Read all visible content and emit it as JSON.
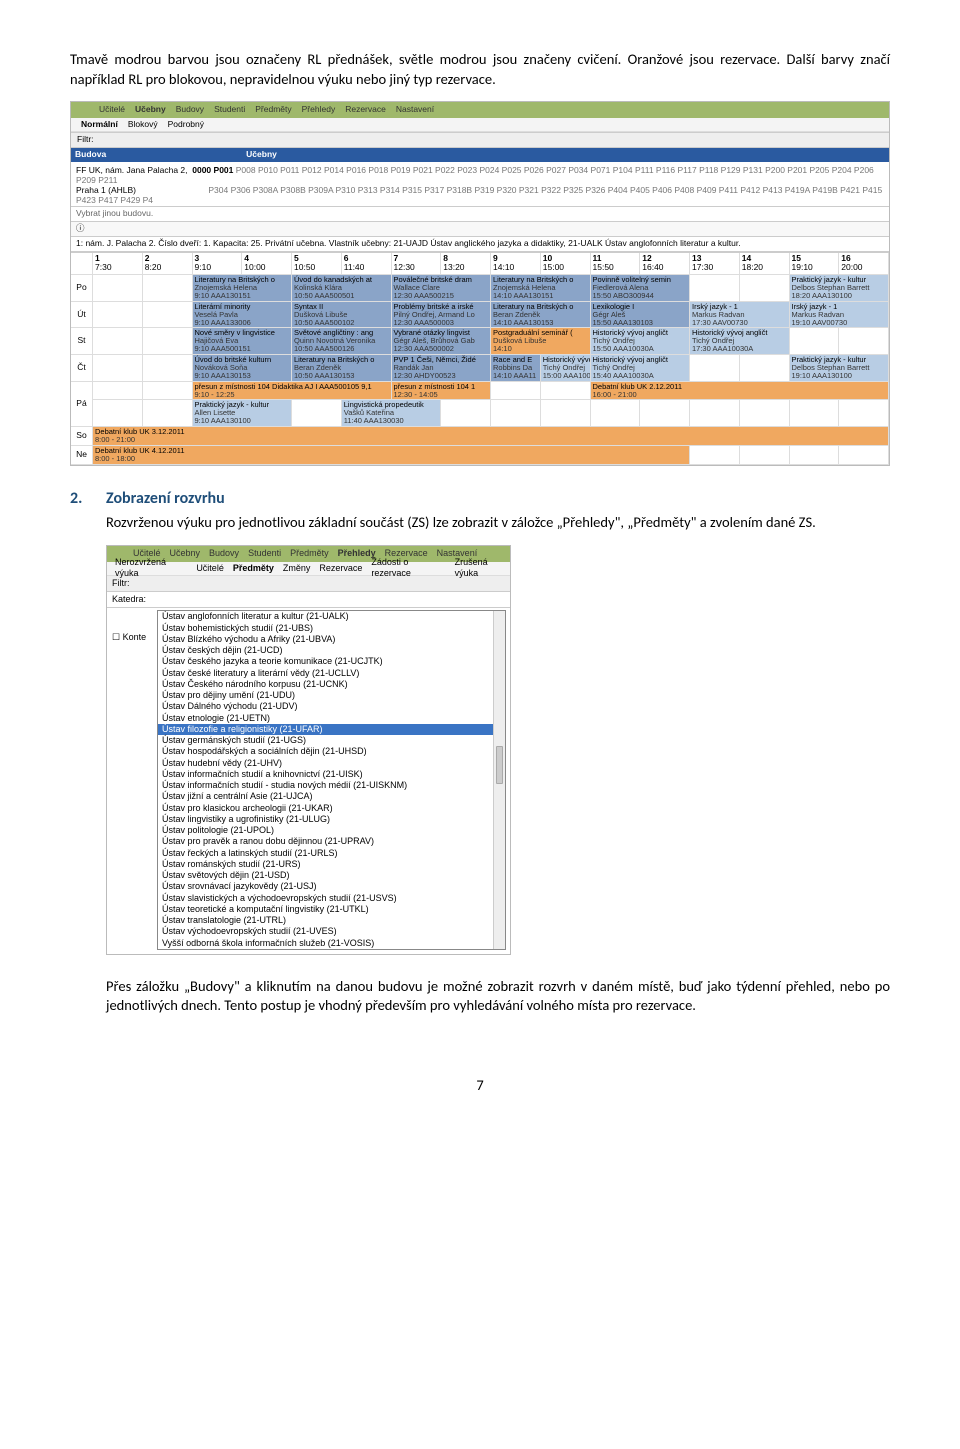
{
  "intro": {
    "p1": "Tmavě modrou barvou jsou označeny RL přednášek, světle modrou jsou značeny cvičení. Oranžové jsou rezervace. Další barvy značí například RL pro blokovou, nepravidelnou výuku nebo jiný typ rezervace."
  },
  "section2": {
    "num": "2.",
    "head": "Zobrazení rozvrhu",
    "body": "Rozvrženou výuku pro jednotlivou základní součást (ZS) lze zobrazit v záložce „Přehledy\", „Předměty\" a zvolením dané ZS."
  },
  "para3": "Přes záložku „Budovy\" a kliknutím na danou budovu je možné zobrazit rozvrh v daném místě, buď jako týdenní přehled, nebo po jednotlivých dnech. Tento postup je vhodný především pro vyhledávání volného místa pro rezervace.",
  "pg": "7",
  "shot1": {
    "tabs": [
      "Učitelé",
      "Učebny",
      "Budovy",
      "Studenti",
      "Předměty",
      "Přehledy",
      "Rezervace",
      "Nastavení"
    ],
    "subtabs": [
      "Normální",
      "Blokový",
      "Podrobný"
    ],
    "filter": "Filtr:",
    "bluebar_left": "Budova",
    "bluebar_right": "Učebny",
    "addr_title": "FF UK, nám. Jana Palacha 2,",
    "addr_sel": "0000 P001",
    "addr_rooms": "P008 P010 P011 P012 P014 P016 P018 P019 P021 P022 P023 P024 P025 P026 P027 P034 P071 P104 P111 P116 P117 P118 P129 P131 P200 P201 P205 P204 P206 P209 P211",
    "addr_line2": "Praha 1 (AHLB)",
    "addr_rooms2": "P304 P306 P308A P308B P309A P310 P313 P314 P315 P317 P318B P319 P320 P321 P322 P325 P326 P404 P405 P406 P408 P409 P411 P412 P413 P419A P419B P421 P415 P423 P417 P429 P4",
    "note": "Vybrat jinou budovu.",
    "info": "1: nám. J. Palacha 2. Číslo dveří: 1. Kapacita: 25. Privátní učebna. Vlastník učebny: 21-UAJD Ústav anglického jazyka a didaktiky, 21-UALK Ústav anglofonních literatur a kultur.",
    "times": [
      {
        "n": "1",
        "t": "7:30"
      },
      {
        "n": "2",
        "t": "8:20"
      },
      {
        "n": "3",
        "t": "9:10"
      },
      {
        "n": "4",
        "t": "10:00"
      },
      {
        "n": "5",
        "t": "10:50"
      },
      {
        "n": "6",
        "t": "11:40"
      },
      {
        "n": "7",
        "t": "12:30"
      },
      {
        "n": "8",
        "t": "13:20"
      },
      {
        "n": "9",
        "t": "14:10"
      },
      {
        "n": "10",
        "t": "15:00"
      },
      {
        "n": "11",
        "t": "15:50"
      },
      {
        "n": "12",
        "t": "16:40"
      },
      {
        "n": "13",
        "t": "17:30"
      },
      {
        "n": "14",
        "t": "18:20"
      },
      {
        "n": "15",
        "t": "19:10"
      },
      {
        "n": "16",
        "t": "20:00"
      }
    ],
    "days": [
      "Po",
      "Út",
      "St",
      "Čt",
      "Pá",
      "So",
      "Ne"
    ],
    "events": {
      "po3": {
        "c": "darkblue",
        "l1": "Literatury na Britských o",
        "l2": "Znojemská Helena",
        "l3": "9:10 AAA130151"
      },
      "po5": {
        "c": "darkblue",
        "l1": "Úvod do kanadských at",
        "l2": "Kolinská Klára",
        "l3": "10:50 AAA500501"
      },
      "po7": {
        "c": "darkblue",
        "l1": "Poválečné britské dram",
        "l2": "Wallace Clare",
        "l3": "12:30 AAA500215"
      },
      "po9": {
        "c": "darkblue",
        "l1": "Literatury na Britských o",
        "l2": "Znojemská Helena",
        "l3": "14:10 AAA130151"
      },
      "po11": {
        "c": "darkblue",
        "l1": "Povinně volitelný semin",
        "l2": "Fiedlerová Alena",
        "l3": "15:50 ABO300944"
      },
      "po15": {
        "c": "lightblue",
        "l1": "Praktický jazyk - kultur",
        "l2": "Delbos Stephan Barrett",
        "l3": "18:20 AAA130100"
      },
      "ut3": {
        "c": "darkblue",
        "l1": "Literární minority",
        "l2": "Veselá Pavla",
        "l3": "9:10 AAA133006"
      },
      "ut5": {
        "c": "darkblue",
        "l1": "Syntax II",
        "l2": "Dušková Libuše",
        "l3": "10:50 AAA500102"
      },
      "ut7": {
        "c": "darkblue",
        "l1": "Problémy britské a irské",
        "l2": "Pilný Ondřej, Armand Lo",
        "l3": "12:30 AAA500003"
      },
      "ut9": {
        "c": "darkblue",
        "l1": "Literatury na Britských o",
        "l2": "Beran Zdeněk",
        "l3": "14:10 AAA130153"
      },
      "ut11": {
        "c": "darkblue",
        "l1": "Lexikologie I",
        "l2": "Gégr Aleš",
        "l3": "15:50 AAA130103"
      },
      "ut13": {
        "c": "lightblue",
        "l1": "Irský jazyk - 1",
        "l2": "Markus Radvan",
        "l3": "17:30 AAV00730"
      },
      "ut15": {
        "c": "lightblue",
        "l1": "Irský jazyk - 1",
        "l2": "Markus Radvan",
        "l3": "19:10 AAV00730"
      },
      "st3": {
        "c": "darkblue",
        "l1": "Nové směry v lingvistice",
        "l2": "Hajičová Eva",
        "l3": "9:10 AAA500151"
      },
      "st5": {
        "c": "darkblue",
        "l1": "Světové angličtiny : ang",
        "l2": "Quinn Novotná Veronika",
        "l3": "10:50 AAA500126"
      },
      "st7": {
        "c": "darkblue",
        "l1": "Vybrané otázky lingvist",
        "l2": "Gégr Aleš, Brůhová Gab",
        "l3": "12:30 AAA500002"
      },
      "st9": {
        "c": "orange",
        "l1": "Postgraduální seminář (",
        "l2": "Dušková Libuše",
        "l3": "14:10"
      },
      "st11": {
        "c": "lightblue",
        "l1": "Historický vývoj angličt",
        "l2": "Tichý Ondřej",
        "l3": "15:50 AAA10030A"
      },
      "st13": {
        "c": "lightblue",
        "l1": "Historický vývoj angličt",
        "l2": "Tichý Ondřej",
        "l3": "17:30 AAA10030A"
      },
      "ct3": {
        "c": "darkblue",
        "l1": "Úvod do britské kulturn",
        "l2": "Nováková Soňa",
        "l3": "9:10 AAA130153"
      },
      "ct5": {
        "c": "darkblue",
        "l1": "Literatury na Britských o",
        "l2": "Beran Zdeněk",
        "l3": "10:50 AAA130153"
      },
      "ct7": {
        "c": "darkblue",
        "l1": "PVP 1 Češi, Němci, Židé",
        "l2": "Randák Jan",
        "l3": "12:30 AHDY00523"
      },
      "ct9": {
        "c": "darkblue",
        "l1": "Race and E",
        "l2": "Robbins Da",
        "l3": "14:10 AAA11"
      },
      "ct10": {
        "c": "lightblue",
        "l1": "Historický vývoj angličt",
        "l2": "Tichý Ondřej",
        "l3": "15:00 AAA10030A"
      },
      "ct11": {
        "c": "lightblue",
        "l1": "Historický vývoj angličt",
        "l2": "Tichý Ondřej",
        "l3": "15:40 AAA10030A"
      },
      "ct15": {
        "c": "lightblue",
        "l1": "Praktický jazyk - kultur",
        "l2": "Delbos Stephan Barrett",
        "l3": "19:10 AAA130100"
      },
      "pa_a": {
        "c": "orange",
        "l1": "přesun z místnosti 104 Didaktika AJ I AAA500105 9,1",
        "l2": "",
        "l3": "9:10 - 12:25"
      },
      "pa_b": {
        "c": "orange",
        "l1": "přesun z místnosti 104 1",
        "l2": "",
        "l3": "12:30 - 14:05"
      },
      "pa_c": {
        "c": "orange",
        "l1": "Debatní klub UK 2.12.2011",
        "l2": "",
        "l3": "16:00 - 21:00"
      },
      "pa3": {
        "c": "lightblue",
        "l1": "Praktický jazyk - kultur",
        "l2": "Allen Lisette",
        "l3": "9:10 AAA130100"
      },
      "pa6": {
        "c": "lightblue",
        "l1": "Lingvistická propedeutik",
        "l2": "Vašků Kateřina",
        "l3": "11:40 AAA130030"
      },
      "so": {
        "c": "orange",
        "l1": "Debatní klub UK 3.12.2011",
        "l2": "",
        "l3": "8:00 - 21:00"
      },
      "ne": {
        "c": "orange",
        "l1": "Debatní klub UK 4.12.2011",
        "l2": "",
        "l3": "8:00 - 18:00"
      }
    }
  },
  "shot2": {
    "tabs": [
      "Učitelé",
      "Učebny",
      "Budovy",
      "Studenti",
      "Předměty",
      "Přehledy",
      "Rezervace",
      "Nastavení"
    ],
    "subtabs": [
      "Nerozvržená výuka",
      "Učitelé",
      "Předměty",
      "Změny",
      "Rezervace",
      "Žádosti o rezervace",
      "Zrušená výuka"
    ],
    "filter": "Filtr:",
    "label": "Katedra:",
    "kont": "Konte",
    "selected": "Ústav filozofie a religionistiky (21-UFAR)",
    "options": [
      "Ústav anglofonních literatur a kultur (21-UALK)",
      "Ústav bohemistických studií (21-UBS)",
      "Ústav Blízkého východu a Afriky (21-UBVA)",
      "Ústav českých dějin (21-UCD)",
      "Ústav českého jazyka a teorie komunikace (21-UCJTK)",
      "Ústav české literatury a literární vědy (21-UCLLV)",
      "Ústav Českého národního korpusu (21-UCNK)",
      "Ústav pro dějiny umění (21-UDU)",
      "Ústav Dálného východu (21-UDV)",
      "Ústav etnologie (21-UETN)",
      "Ústav filozofie a religionistiky (21-UFAR)",
      "Ústav germánských studií (21-UGS)",
      "Ústav hospodářských a sociálních dějin (21-UHSD)",
      "Ústav hudební vědy (21-UHV)",
      "Ústav informačních studií a knihovnictví (21-UISK)",
      "Ústav informačních studií - studia nových médií (21-UISKNM)",
      "Ústav jižní a centrální Asie (21-UJCA)",
      "Ústav pro klasickou archeologii (21-UKAR)",
      "Ústav lingvistiky a ugrofinistiky (21-ULUG)",
      "Ústav politologie (21-UPOL)",
      "Ústav pro pravěk a ranou dobu dějinnou (21-UPRAV)",
      "Ústav řeckých a latinských studií (21-URLS)",
      "Ústav románských studií (21-URS)",
      "Ústav světových dějin (21-USD)",
      "Ústav srovnávací jazykovědy (21-USJ)",
      "Ústav slavistických a východoevropských studií (21-USVS)",
      "Ústav teoretické a komputační lingvistiky (21-UTKL)",
      "Ústav translatologie (21-UTRL)",
      "Ústav východoevropských studií (21-UVES)",
      "Vyšší odborná škola informačních služeb (21-VOSIS)"
    ]
  }
}
